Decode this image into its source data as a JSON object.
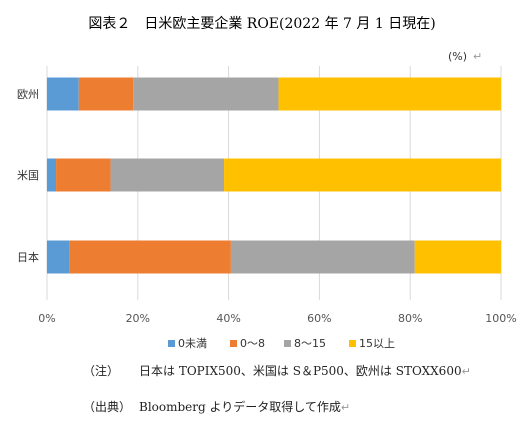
{
  "chart_data": {
    "type": "bar",
    "orientation": "horizontal",
    "stacked": true,
    "percent_stacked": true,
    "title": "図表２　日米欧主要企業 ROE(2022 年 7 月 1 日現在)",
    "unit_label": "(%)",
    "categories": [
      "欧州",
      "米国",
      "日本"
    ],
    "series": [
      {
        "name": "0未満",
        "color": "#5b9bd5",
        "values": [
          7,
          2,
          5
        ]
      },
      {
        "name": "0～8",
        "color": "#ed7d31",
        "values": [
          12,
          12,
          35.5
        ]
      },
      {
        "name": "8～15",
        "color": "#a5a5a5",
        "values": [
          32,
          25,
          40.5
        ]
      },
      {
        "name": "15以上",
        "color": "#ffc000",
        "values": [
          49,
          61,
          19
        ]
      }
    ],
    "x_ticks": [
      "0%",
      "20%",
      "40%",
      "60%",
      "80%",
      "100%"
    ],
    "xlim": [
      0,
      100
    ],
    "grid": true,
    "legend_position": "bottom"
  },
  "notes": {
    "note_label": "（注）",
    "note_text": "日本は TOPIX500、米国は S＆P500、欧州は STOXX600",
    "source_label": "（出典）",
    "source_text": "Bloomberg よりデータ取得して作成",
    "return_mark": "↵"
  }
}
